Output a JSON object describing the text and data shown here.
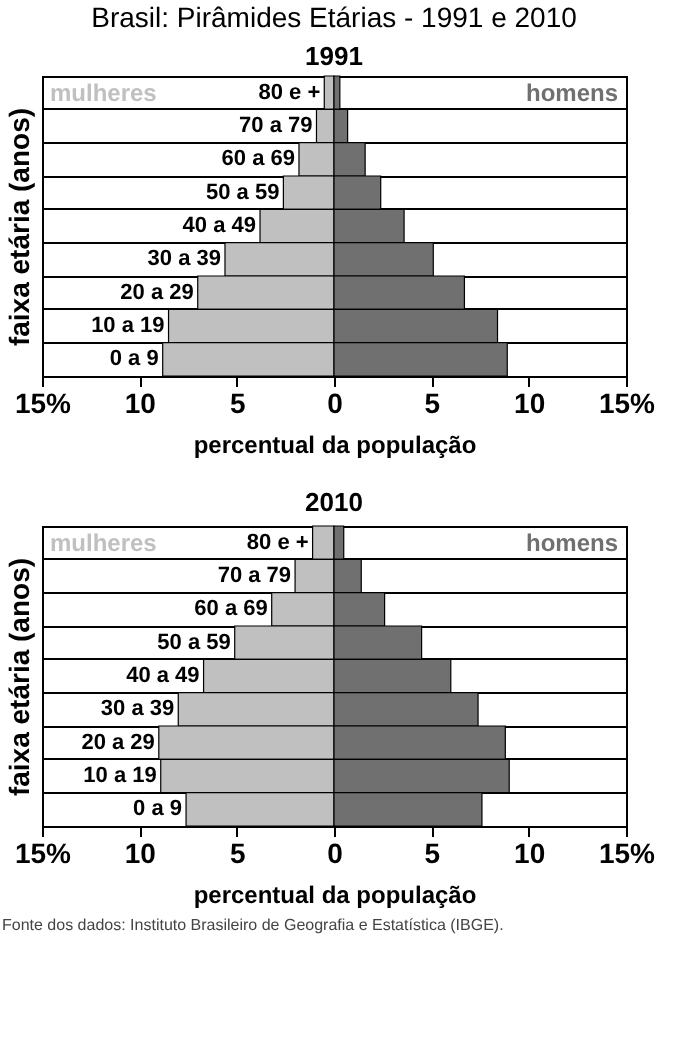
{
  "chart_data": [
    {
      "type": "bar",
      "orientation": "horizontal",
      "stacked": true,
      "title": "Brasil: Pirâmides Etárias - 1991 e 2010",
      "subtitle": "1991",
      "xlabel": "percentual da população",
      "ylabel": "faixa etária (anos)",
      "categories": [
        "80 e +",
        "70 a 79",
        "60 a 69",
        "50 a 59",
        "40 a 49",
        "30 a 39",
        "20 a 29",
        "10 a 19",
        "0 a 9"
      ],
      "series": [
        {
          "name": "mulheres",
          "color": "#c0c0c0",
          "values": [
            -0.5,
            -0.9,
            -1.8,
            -2.6,
            -3.8,
            -5.6,
            -7.0,
            -8.5,
            -8.8
          ]
        },
        {
          "name": "homens",
          "color": "#707070",
          "values": [
            0.3,
            0.7,
            1.6,
            2.4,
            3.6,
            5.1,
            6.7,
            8.4,
            8.9
          ]
        }
      ],
      "xlim": [
        -15,
        15
      ],
      "xticks": [
        {
          "value": -15,
          "label": "15%"
        },
        {
          "value": -10,
          "label": "10"
        },
        {
          "value": -5,
          "label": "5"
        },
        0,
        5,
        10,
        {
          "value": 15,
          "label": "15%"
        }
      ],
      "grid": "y",
      "legend": false
    },
    {
      "type": "bar",
      "orientation": "horizontal",
      "stacked": true,
      "title": "2010",
      "xlabel": "percentual da população",
      "ylabel": "faixa etária (anos)",
      "categories": [
        "80 e +",
        "70 a 79",
        "60 a 69",
        "50 a 59",
        "40 a 49",
        "30 a 39",
        "20 a 29",
        "10 a 19",
        "0 a 9"
      ],
      "series": [
        {
          "name": "mulheres",
          "color": "#c0c0c0",
          "values": [
            -1.1,
            -2.0,
            -3.2,
            -5.1,
            -6.7,
            -8.0,
            -9.0,
            -8.9,
            -7.6
          ]
        },
        {
          "name": "homens",
          "color": "#707070",
          "values": [
            0.5,
            1.4,
            2.6,
            4.5,
            6.0,
            7.4,
            8.8,
            9.0,
            7.6
          ]
        }
      ],
      "xlim": [
        -15,
        15
      ],
      "xticks": [
        {
          "value": -15,
          "label": "15%"
        },
        {
          "value": -10,
          "label": "10"
        },
        {
          "value": -5,
          "label": "5"
        },
        0,
        5,
        10,
        {
          "value": 15,
          "label": "15%"
        }
      ],
      "grid": "y",
      "legend": false,
      "annotations": [
        "Fonte dos dados: Instituto Brasileiro de Geografia e Estatística (IBGE)."
      ]
    }
  ]
}
